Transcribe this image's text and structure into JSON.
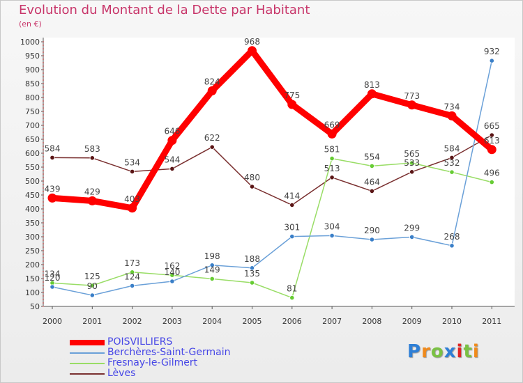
{
  "chart_data": {
    "type": "line",
    "title": "Evolution du Montant de la Dette par Habitant",
    "subtitle": "(en €)",
    "x": [
      "2000",
      "2001",
      "2002",
      "2003",
      "2004",
      "2005",
      "2006",
      "2007",
      "2008",
      "2009",
      "2010",
      "2011"
    ],
    "y_ticks": [
      50,
      100,
      150,
      200,
      250,
      300,
      350,
      400,
      450,
      500,
      550,
      600,
      650,
      700,
      750,
      800,
      850,
      900,
      950,
      1000
    ],
    "ylim": [
      50,
      1000
    ],
    "grid": false,
    "legend_position": "bottom-left",
    "series": [
      {
        "name": "POISVILLIERS",
        "color": "#ff0000",
        "values": [
          439,
          429,
          403,
          646,
          824,
          968,
          775,
          669,
          813,
          773,
          734,
          613
        ]
      },
      {
        "name": "Berchères-Saint-Germain",
        "color": "#6aa0d8",
        "marker": "#3a7fc8",
        "values": [
          120,
          90,
          124,
          140,
          198,
          188,
          301,
          304,
          290,
          299,
          268,
          932
        ]
      },
      {
        "name": "Fresnay-le-Gilmert",
        "color": "#99dd66",
        "marker": "#66cc33",
        "values": [
          134,
          125,
          173,
          162,
          149,
          135,
          81,
          581,
          554,
          565,
          532,
          496
        ]
      },
      {
        "name": "Lèves",
        "color": "#7a3030",
        "marker": "#5a1515",
        "values": [
          584,
          583,
          534,
          544,
          622,
          480,
          414,
          513,
          464,
          533,
          584,
          665
        ]
      }
    ]
  },
  "legend": {
    "items": [
      "POISVILLIERS",
      "Berchères-Saint-Germain",
      "Fresnay-le-Gilmert",
      "Lèves"
    ]
  },
  "logo": {
    "letters": [
      "P",
      "r",
      "o",
      "x",
      "i",
      "t",
      "i"
    ],
    "colors": [
      "#2e7fd6",
      "#f08a1c",
      "#7ac143",
      "#2e7fd6",
      "#e02424",
      "#7ac143",
      "#f08a1c"
    ]
  }
}
